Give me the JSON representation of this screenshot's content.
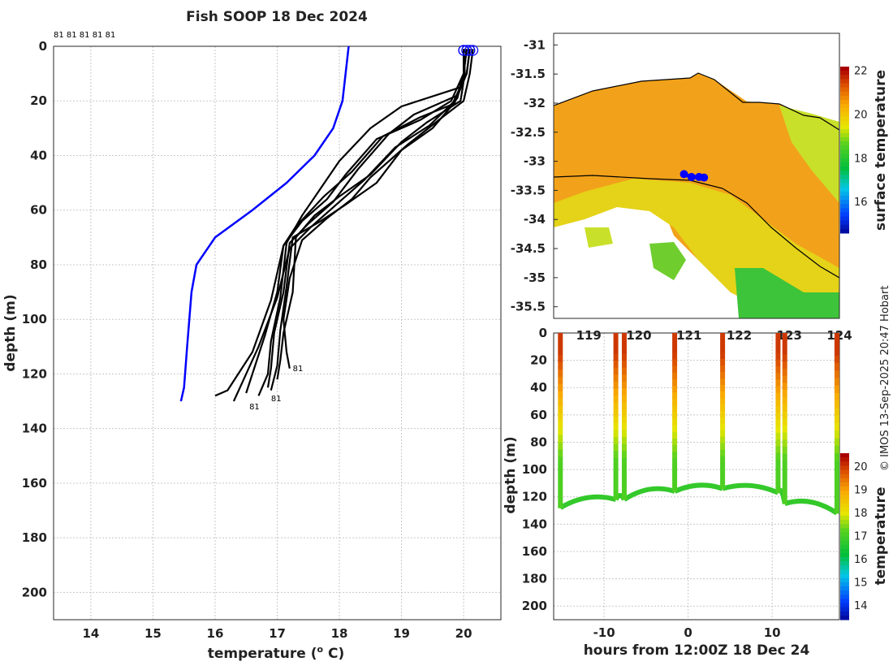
{
  "title": "Fish SOOP 18 Dec 2024",
  "copyright": "© IMOS 13-Sep-2025 20:47 Hobart",
  "profile_ids_top": "81 81 81 81 81",
  "profile_id_label": "81",
  "colors": {
    "climatology": "#0000ff",
    "profiles": "#000000",
    "surface_marker": "#0000ff"
  },
  "chart_data": [
    {
      "type": "line",
      "name": "temperature-depth-profiles",
      "xlabel": "temperature (o C)",
      "ylabel": "depth (m)",
      "xlim": [
        13.4,
        20.6
      ],
      "ylim": [
        210,
        0
      ],
      "xticks": [
        "14",
        "15",
        "16",
        "17",
        "18",
        "19",
        "20"
      ],
      "yticks": [
        "0",
        "20",
        "40",
        "60",
        "80",
        "100",
        "120",
        "140",
        "160",
        "180",
        "200"
      ],
      "grid": true,
      "series": [
        {
          "role": "climatology",
          "x": [
            18.15,
            18.1,
            18.05,
            17.9,
            17.6,
            17.15,
            16.6,
            16.0,
            15.7,
            15.62,
            15.55,
            15.5,
            15.45
          ],
          "y": [
            0,
            10,
            20,
            30,
            40,
            50,
            60,
            70,
            80,
            90,
            110,
            125,
            130
          ]
        },
        {
          "role": "profile",
          "x": [
            20.0,
            20.02,
            19.95,
            19.4,
            19.0,
            18.5,
            18.0,
            17.6,
            17.3,
            17.25,
            17.1,
            17.05,
            17.0
          ],
          "y": [
            1,
            10,
            20,
            28,
            35,
            47,
            55,
            62,
            70,
            90,
            105,
            115,
            122
          ]
        },
        {
          "role": "profile",
          "x": [
            20.05,
            20.0,
            19.9,
            19.2,
            18.8,
            18.3,
            17.9,
            17.5,
            17.2,
            17.1,
            16.95,
            16.9,
            16.85
          ],
          "y": [
            1,
            10,
            18,
            25,
            32,
            45,
            57,
            65,
            72,
            90,
            105,
            118,
            125
          ]
        },
        {
          "role": "profile",
          "x": [
            20.1,
            20.05,
            19.8,
            19.5,
            19.0,
            18.6,
            18.1,
            17.7,
            17.25,
            17.15,
            17.05,
            17.0,
            16.9
          ],
          "y": [
            1,
            10,
            22,
            30,
            38,
            50,
            58,
            64,
            70,
            88,
            104,
            117,
            126
          ]
        },
        {
          "role": "profile",
          "x": [
            20.0,
            20.0,
            19.95,
            19.0,
            18.5,
            18.0,
            17.7,
            17.4,
            17.15,
            17.05,
            16.9,
            16.85,
            16.7
          ],
          "y": [
            1,
            10,
            15,
            22,
            30,
            42,
            52,
            62,
            72,
            92,
            108,
            120,
            128
          ]
        },
        {
          "role": "profile",
          "x": [
            20.15,
            20.1,
            20.0,
            19.6,
            19.1,
            18.5,
            18.2,
            17.8,
            17.4,
            17.2,
            17.1,
            17.15,
            17.2
          ],
          "y": [
            1,
            10,
            20,
            27,
            36,
            48,
            56,
            63,
            71,
            85,
            100,
            112,
            118
          ]
        },
        {
          "role": "profile",
          "x": [
            20.1,
            20.05,
            19.85,
            19.3,
            18.7,
            18.2,
            17.75,
            17.3,
            17.1,
            17.0,
            16.8,
            16.6,
            16.5
          ],
          "y": [
            1,
            10,
            21,
            26,
            33,
            46,
            55,
            66,
            73,
            90,
            106,
            120,
            127
          ]
        },
        {
          "role": "profile",
          "x": [
            20.0,
            20.0,
            19.9,
            19.45,
            18.9,
            18.4,
            18.0,
            17.55,
            17.2,
            17.0,
            16.7,
            16.4,
            16.3
          ],
          "y": [
            1,
            10,
            19,
            29,
            37,
            49,
            57,
            66,
            74,
            92,
            110,
            125,
            130
          ]
        },
        {
          "role": "profile",
          "x": [
            20.05,
            20.0,
            19.8,
            19.3,
            18.6,
            18.1,
            17.8,
            17.4,
            17.1,
            16.9,
            16.6,
            16.2,
            16.0
          ],
          "y": [
            1,
            10,
            20,
            27,
            34,
            47,
            56,
            64,
            73,
            93,
            112,
            126,
            128
          ]
        }
      ],
      "annotations": [
        {
          "text": "81",
          "x": 17.25,
          "y": 119
        },
        {
          "text": "81",
          "x": 16.9,
          "y": 130
        },
        {
          "text": "81",
          "x": 16.55,
          "y": 133
        }
      ]
    },
    {
      "type": "heatmap",
      "name": "surface-temperature-map",
      "yticks": [
        "-31",
        "-31.5",
        "-32",
        "-32.5",
        "-33",
        "-33.5",
        "-34",
        "-34.5",
        "-35",
        "-35.5"
      ],
      "xticks": [
        "119",
        "120",
        "121",
        "122",
        "123",
        "124"
      ],
      "xlim": [
        118.3,
        124.0
      ],
      "ylim": [
        -35.7,
        -30.8
      ],
      "track": {
        "lon": [
          120.9,
          121.05,
          121.2,
          121.3
        ],
        "lat": [
          -33.22,
          -33.27,
          -33.27,
          -33.28
        ]
      },
      "colorbar": {
        "label": "surface temperature",
        "ticks": [
          "16",
          "18",
          "20",
          "22"
        ],
        "min": 14.6,
        "max": 22.2
      }
    },
    {
      "type": "scatter",
      "name": "depth-time-section",
      "xlabel": "hours from 12:00Z 18 Dec 24",
      "ylabel": "depth (m)",
      "xlim": [
        -16,
        18
      ],
      "ylim": [
        210,
        0
      ],
      "xticks": [
        "-10",
        "0",
        "10"
      ],
      "yticks": [
        "0",
        "20",
        "40",
        "60",
        "80",
        "100",
        "120",
        "140",
        "160",
        "180",
        "200"
      ],
      "casts": [
        -15.2,
        -8.6,
        -7.6,
        -1.6,
        4.1,
        10.7,
        11.5,
        17.7
      ],
      "bottom_depth": [
        128,
        122,
        122,
        116,
        114,
        117,
        125,
        132
      ],
      "colorbar": {
        "label": "temperature",
        "ticks": [
          "14",
          "15",
          "16",
          "17",
          "18",
          "19",
          "20"
        ],
        "min": 13.4,
        "max": 20.6
      }
    }
  ]
}
